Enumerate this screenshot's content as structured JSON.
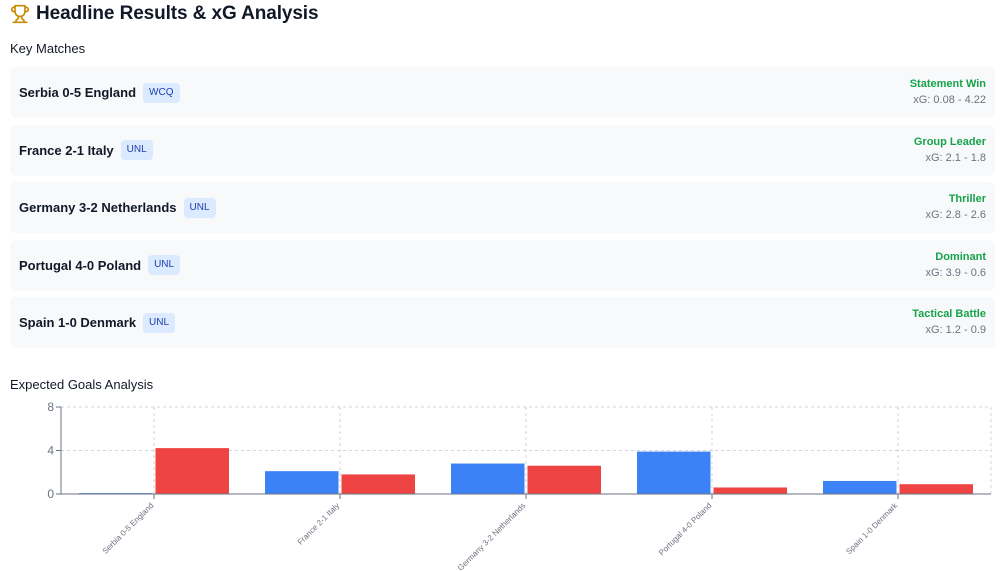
{
  "header": {
    "icon": "trophy-icon",
    "title": "Headline Results & xG Analysis"
  },
  "sections": {
    "key_matches": "Key Matches",
    "xg_analysis": "Expected Goals Analysis"
  },
  "colors": {
    "home": "#3b82f6",
    "away": "#ef4444",
    "tag": "#16a34a",
    "badge_bg": "#dbeafe",
    "badge_text": "#1e40af",
    "trophy": "#ca8a04"
  },
  "matches": [
    {
      "name": "Serbia 0-5 England",
      "competition": "WCQ",
      "tag": "Statement Win",
      "xg": "xG: 0.08 - 4.22"
    },
    {
      "name": "France 2-1 Italy",
      "competition": "UNL",
      "tag": "Group Leader",
      "xg": "xG: 2.1 - 1.8"
    },
    {
      "name": "Germany 3-2 Netherlands",
      "competition": "UNL",
      "tag": "Thriller",
      "xg": "xG: 2.8 - 2.6"
    },
    {
      "name": "Portugal 4-0 Poland",
      "competition": "UNL",
      "tag": "Dominant",
      "xg": "xG: 3.9 - 0.6"
    },
    {
      "name": "Spain 1-0 Denmark",
      "competition": "UNL",
      "tag": "Tactical Battle",
      "xg": "xG: 1.2 - 0.9"
    }
  ],
  "chart_data": {
    "type": "bar",
    "title": "",
    "xlabel": "",
    "ylabel": "",
    "categories": [
      "Serbia 0-5 England",
      "France 2-1 Italy",
      "Germany 3-2 Netherlands",
      "Portugal 4-0 Poland",
      "Spain 1-0 Denmark"
    ],
    "series": [
      {
        "values": [
          0.08,
          2.1,
          2.8,
          3.9,
          1.2
        ],
        "color": "#3b82f6"
      },
      {
        "values": [
          4.22,
          1.8,
          2.6,
          0.6,
          0.9
        ],
        "color": "#ef4444"
      }
    ],
    "ylim": [
      0,
      8
    ],
    "yticks": [
      "0",
      "4",
      "8"
    ],
    "grid": true,
    "legend": "none"
  }
}
